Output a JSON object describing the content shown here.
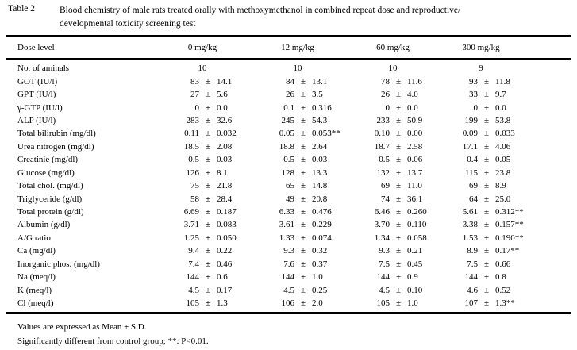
{
  "table": {
    "label": "Table 2",
    "caption_line1": "Blood chemistry of male rats treated orally with methoxymethanol in combined repeat dose and reproductive/",
    "caption_line2": "developmental toxicity screening test",
    "plus_minus": "±",
    "header": {
      "param": "Dose level",
      "doses": [
        "0 mg/kg",
        "12 mg/kg",
        "60 mg/kg",
        "300 mg/kg"
      ]
    },
    "animals_row": {
      "label": "No. of aminals",
      "counts": [
        "10",
        "10",
        "10",
        "9"
      ]
    },
    "rows": [
      {
        "label": "GOT (IU/l)",
        "values": [
          {
            "mean": "83",
            "sd": "14.1"
          },
          {
            "mean": "84",
            "sd": "13.1"
          },
          {
            "mean": "78",
            "sd": "11.6"
          },
          {
            "mean": "93",
            "sd": "11.8"
          }
        ]
      },
      {
        "label": "GPT (IU/l)",
        "values": [
          {
            "mean": "27",
            "sd": "5.6"
          },
          {
            "mean": "26",
            "sd": "3.5"
          },
          {
            "mean": "26",
            "sd": "4.0"
          },
          {
            "mean": "33",
            "sd": "9.7"
          }
        ]
      },
      {
        "label": "γ-GTP (IU/l)",
        "values": [
          {
            "mean": "0",
            "sd": "0.0"
          },
          {
            "mean": "0.1",
            "sd": "0.316"
          },
          {
            "mean": "0",
            "sd": "0.0"
          },
          {
            "mean": "0",
            "sd": "0.0"
          }
        ]
      },
      {
        "label": "ALP (IU/l)",
        "values": [
          {
            "mean": "283",
            "sd": "32.6"
          },
          {
            "mean": "245",
            "sd": "54.3"
          },
          {
            "mean": "233",
            "sd": "50.9"
          },
          {
            "mean": "199",
            "sd": "53.8"
          }
        ]
      },
      {
        "label": "Total bilirubin (mg/dl)",
        "values": [
          {
            "mean": "0.11",
            "sd": "0.032"
          },
          {
            "mean": "0.05",
            "sd": "0.053**"
          },
          {
            "mean": "0.10",
            "sd": "0.00"
          },
          {
            "mean": "0.09",
            "sd": "0.033"
          }
        ]
      },
      {
        "label": "Urea nitrogen (mg/dl)",
        "values": [
          {
            "mean": "18.5",
            "sd": "2.08"
          },
          {
            "mean": "18.8",
            "sd": "2.64"
          },
          {
            "mean": "18.7",
            "sd": "2.58"
          },
          {
            "mean": "17.1",
            "sd": "4.06"
          }
        ]
      },
      {
        "label": "Creatinie (mg/dl)",
        "values": [
          {
            "mean": "0.5",
            "sd": "0.03"
          },
          {
            "mean": "0.5",
            "sd": "0.03"
          },
          {
            "mean": "0.5",
            "sd": "0.06"
          },
          {
            "mean": "0.4",
            "sd": "0.05"
          }
        ]
      },
      {
        "label": "Glucose (mg/dl)",
        "values": [
          {
            "mean": "126",
            "sd": "8.1"
          },
          {
            "mean": "128",
            "sd": "13.3"
          },
          {
            "mean": "132",
            "sd": "13.7"
          },
          {
            "mean": "115",
            "sd": "23.8"
          }
        ]
      },
      {
        "label": "Total chol. (mg/dl)",
        "values": [
          {
            "mean": "75",
            "sd": "21.8"
          },
          {
            "mean": "65",
            "sd": "14.8"
          },
          {
            "mean": "69",
            "sd": "11.0"
          },
          {
            "mean": "69",
            "sd": "8.9"
          }
        ]
      },
      {
        "label": "Triglyceride (g/dl)",
        "values": [
          {
            "mean": "58",
            "sd": "28.4"
          },
          {
            "mean": "49",
            "sd": "20.8"
          },
          {
            "mean": "74",
            "sd": "36.1"
          },
          {
            "mean": "64",
            "sd": "25.0"
          }
        ]
      },
      {
        "label": "Total protein (g/dl)",
        "values": [
          {
            "mean": "6.69",
            "sd": "0.187"
          },
          {
            "mean": "6.33",
            "sd": "0.476"
          },
          {
            "mean": "6.46",
            "sd": "0.260"
          },
          {
            "mean": "5.61",
            "sd": "0.312**"
          }
        ]
      },
      {
        "label": "Albumin (g/dl)",
        "values": [
          {
            "mean": "3.71",
            "sd": "0.083"
          },
          {
            "mean": "3.61",
            "sd": "0.229"
          },
          {
            "mean": "3.70",
            "sd": "0.110"
          },
          {
            "mean": "3.38",
            "sd": "0.157**"
          }
        ]
      },
      {
        "label": "A/G ratio",
        "values": [
          {
            "mean": "1.25",
            "sd": "0.050"
          },
          {
            "mean": "1.33",
            "sd": "0.074"
          },
          {
            "mean": "1.34",
            "sd": "0.058"
          },
          {
            "mean": "1.53",
            "sd": "0.190**"
          }
        ]
      },
      {
        "label": "Ca (mg/dl)",
        "values": [
          {
            "mean": "9.4",
            "sd": "0.22"
          },
          {
            "mean": "9.3",
            "sd": "0.32"
          },
          {
            "mean": "9.3",
            "sd": "0.21"
          },
          {
            "mean": "8.9",
            "sd": "0.17**"
          }
        ]
      },
      {
        "label": "Inorganic phos. (mg/dl)",
        "values": [
          {
            "mean": "7.4",
            "sd": "0.46"
          },
          {
            "mean": "7.6",
            "sd": "0.37"
          },
          {
            "mean": "7.5",
            "sd": "0.45"
          },
          {
            "mean": "7.5",
            "sd": "0.66"
          }
        ]
      },
      {
        "label": "Na (meq/l)",
        "values": [
          {
            "mean": "144",
            "sd": "0.6"
          },
          {
            "mean": "144",
            "sd": "1.0"
          },
          {
            "mean": "144",
            "sd": "0.9"
          },
          {
            "mean": "144",
            "sd": "0.8"
          }
        ]
      },
      {
        "label": "K (meq/l)",
        "values": [
          {
            "mean": "4.5",
            "sd": "0.17"
          },
          {
            "mean": "4.5",
            "sd": "0.25"
          },
          {
            "mean": "4.5",
            "sd": "0.10"
          },
          {
            "mean": "4.6",
            "sd": "0.52"
          }
        ]
      },
      {
        "label": "Cl (meq/l)",
        "values": [
          {
            "mean": "105",
            "sd": "1.3"
          },
          {
            "mean": "106",
            "sd": "2.0"
          },
          {
            "mean": "105",
            "sd": "1.0"
          },
          {
            "mean": "107",
            "sd": "1.3**"
          }
        ]
      }
    ],
    "footnotes": [
      "Values are expressed as Mean ± S.D.",
      "Significantly different from control group; **: P<0.01."
    ]
  }
}
